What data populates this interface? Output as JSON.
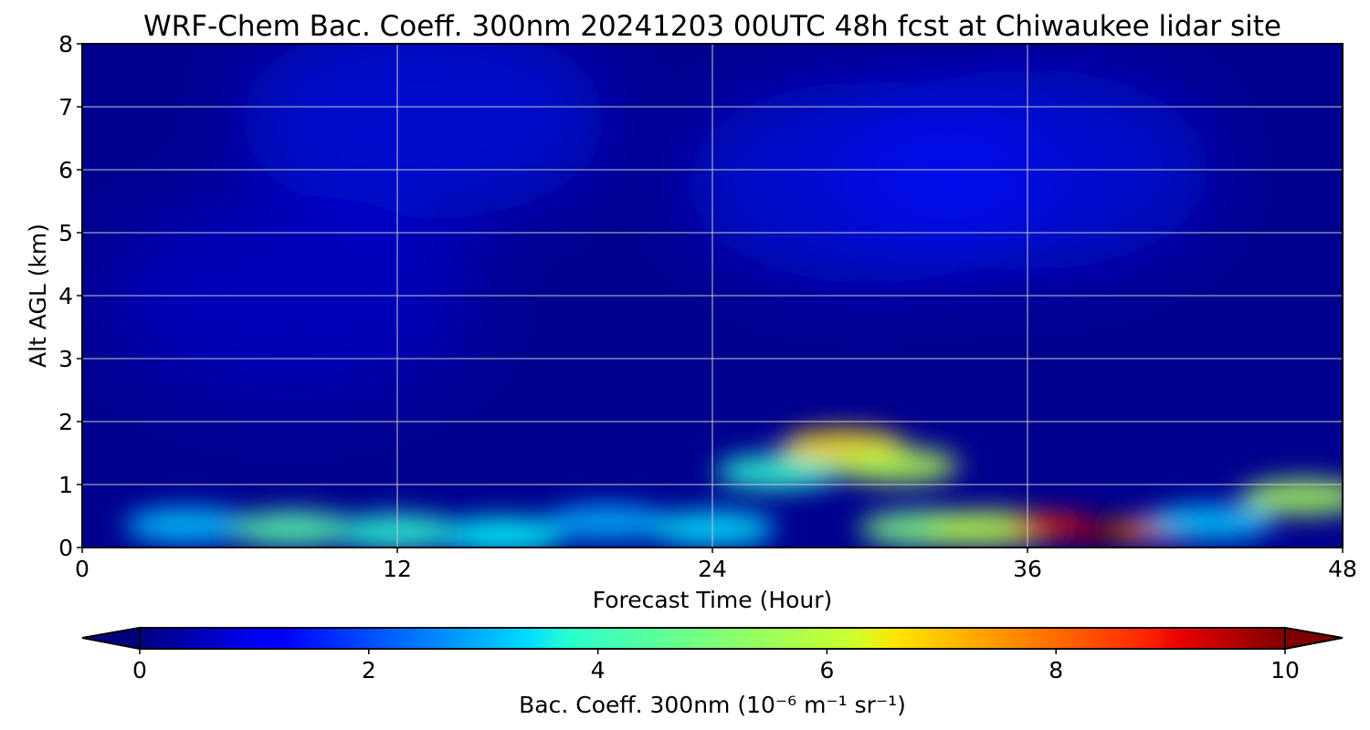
{
  "chart_data": {
    "type": "heatmap",
    "title": "WRF-Chem Bac. Coeff. 300nm  20241203 00UTC 48h fcst at Chiwaukee lidar site",
    "xlabel": "Forecast Time (Hour)",
    "ylabel": "Alt AGL (km)",
    "xlim": [
      0,
      48
    ],
    "ylim": [
      0,
      8
    ],
    "xticks": [
      "0",
      "12",
      "24",
      "36",
      "48"
    ],
    "yticks": [
      "0",
      "1",
      "2",
      "3",
      "4",
      "5",
      "6",
      "7",
      "8"
    ],
    "grid": true,
    "colormap": "jet",
    "colorbar": {
      "label": "Bac. Coeff. 300nm  (10⁻⁶ m⁻¹ sr⁻¹)",
      "range": [
        0,
        10
      ],
      "ticks": [
        "0",
        "2",
        "4",
        "6",
        "8",
        "10"
      ],
      "extend": "both",
      "orientation": "horizontal"
    },
    "features": [
      {
        "x": 4,
        "y": 0.35,
        "value": 3.2
      },
      {
        "x": 8,
        "y": 0.3,
        "value": 4.6
      },
      {
        "x": 12,
        "y": 0.25,
        "value": 4.2
      },
      {
        "x": 16,
        "y": 0.2,
        "value": 3.8
      },
      {
        "x": 20,
        "y": 0.4,
        "value": 3.0
      },
      {
        "x": 24,
        "y": 0.3,
        "value": 3.5
      },
      {
        "x": 26.5,
        "y": 1.2,
        "value": 4.2
      },
      {
        "x": 29,
        "y": 1.6,
        "value": 6.6
      },
      {
        "x": 31,
        "y": 1.3,
        "value": 5.5
      },
      {
        "x": 32,
        "y": 0.3,
        "value": 5.0
      },
      {
        "x": 34.5,
        "y": 0.3,
        "value": 5.6
      },
      {
        "x": 37,
        "y": 0.35,
        "value": 8.5
      },
      {
        "x": 39,
        "y": 0.25,
        "value": 10.0
      },
      {
        "x": 41,
        "y": 0.3,
        "value": 7.5
      },
      {
        "x": 43,
        "y": 0.4,
        "value": 3.2
      },
      {
        "x": 46.5,
        "y": 0.8,
        "value": 5.4
      },
      {
        "x": 13,
        "y": 6.8,
        "value": 1.5
      },
      {
        "x": 30,
        "y": 5.8,
        "value": 1.5
      },
      {
        "x": 36,
        "y": 6.0,
        "value": 1.4
      },
      {
        "x": 8,
        "y": 4.0,
        "value": 0.9
      }
    ]
  }
}
